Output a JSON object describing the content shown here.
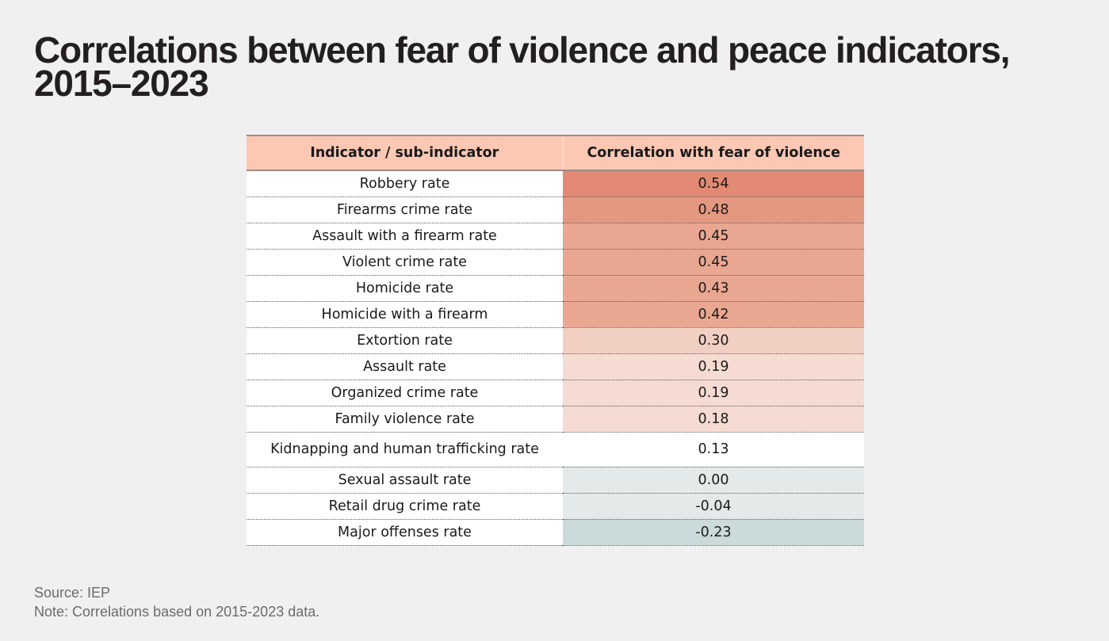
{
  "title": "Correlations between fear of violence and peace indicators, 2015–2023",
  "table": {
    "headers": [
      "Indicator / sub-indicator",
      "Correlation with fear of violence"
    ],
    "rows": [
      {
        "indicator": "Robbery rate",
        "value": "0.54",
        "color": "#e28a73"
      },
      {
        "indicator": "Firearms crime rate",
        "value": "0.48",
        "color": "#e59880"
      },
      {
        "indicator": "Assault with a firearm rate",
        "value": "0.45",
        "color": "#e9a792"
      },
      {
        "indicator": "Violent crime rate",
        "value": "0.45",
        "color": "#e9a792"
      },
      {
        "indicator": "Homicide rate",
        "value": "0.43",
        "color": "#e9a792"
      },
      {
        "indicator": "Homicide with a firearm",
        "value": "0.42",
        "color": "#e9a792"
      },
      {
        "indicator": "Extortion rate",
        "value": "0.30",
        "color": "#f2cfc3"
      },
      {
        "indicator": "Assault rate",
        "value": "0.19",
        "color": "#f5dbd1"
      },
      {
        "indicator": "Organized crime rate",
        "value": "0.19",
        "color": "#f5dbd1"
      },
      {
        "indicator": "Family violence rate",
        "value": "0.18",
        "color": "#f5dbd1"
      },
      {
        "indicator": "Kidnapping and human trafficking rate",
        "value": "0.13",
        "color": "#ffffff",
        "tall": true
      },
      {
        "indicator": "Sexual assault rate",
        "value": "0.00",
        "color": "#e4e9e9"
      },
      {
        "indicator": "Retail drug crime rate",
        "value": "-0.04",
        "color": "#e4e9e9"
      },
      {
        "indicator": "Major offenses rate",
        "value": "-0.23",
        "color": "#cbdada"
      }
    ]
  },
  "footer": {
    "source": "Source: IEP",
    "note": "Note: Correlations based on 2015-2023 data."
  },
  "chart_data": {
    "type": "table",
    "title": "Correlations between fear of violence and peace indicators, 2015–2023",
    "columns": [
      "Indicator / sub-indicator",
      "Correlation with fear of violence"
    ],
    "categories": [
      "Robbery rate",
      "Firearms crime rate",
      "Assault with a firearm rate",
      "Violent crime rate",
      "Homicide rate",
      "Homicide with a firearm",
      "Extortion rate",
      "Assault rate",
      "Organized crime rate",
      "Family violence rate",
      "Kidnapping and human trafficking rate",
      "Sexual assault rate",
      "Retail drug crime rate",
      "Major offenses rate"
    ],
    "values": [
      0.54,
      0.48,
      0.45,
      0.45,
      0.43,
      0.42,
      0.3,
      0.19,
      0.19,
      0.18,
      0.13,
      0.0,
      -0.04,
      -0.23
    ],
    "source": "Source: IEP",
    "note": "Note: Correlations based on 2015-2023 data."
  }
}
